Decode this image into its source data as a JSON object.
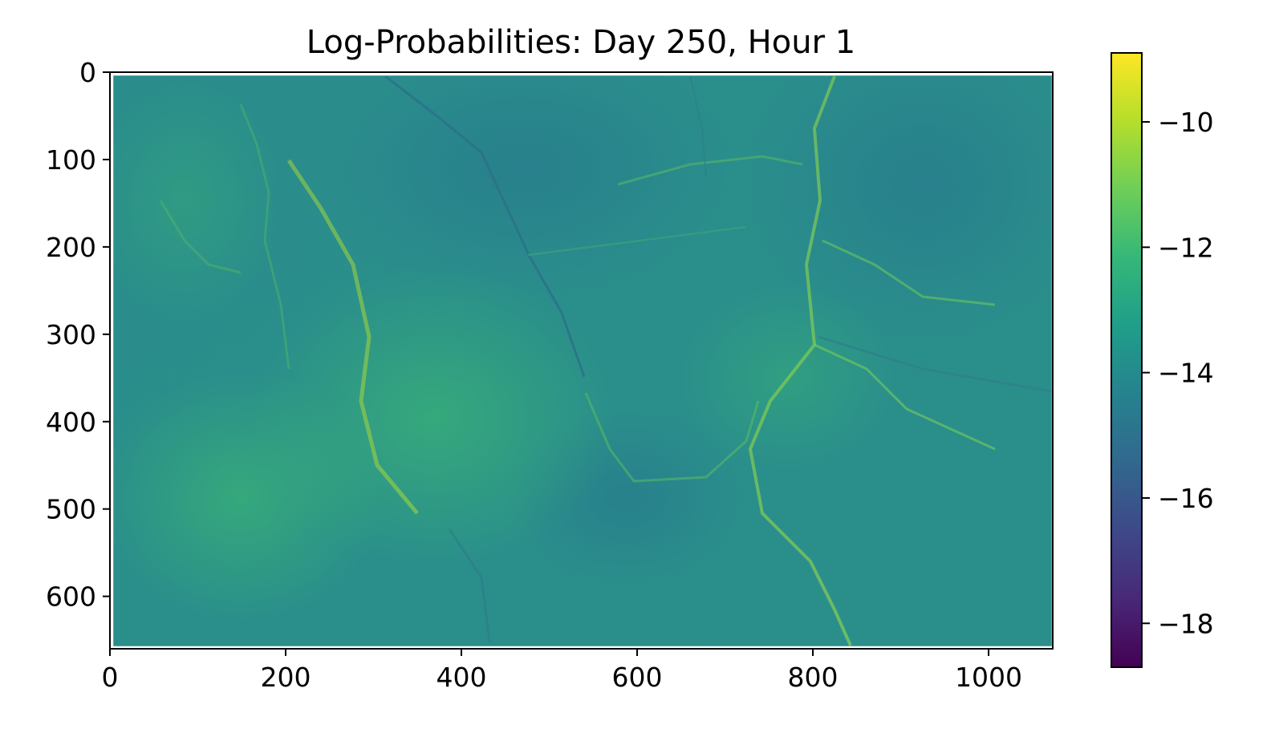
{
  "chart_data": {
    "type": "heatmap",
    "title": "Log-Probabilities: Day 250, Hour 1",
    "xlabel": "",
    "ylabel": "",
    "xlim": [
      0,
      1073
    ],
    "ylim": [
      660,
      0
    ],
    "x_ticks": [
      0,
      200,
      400,
      600,
      800,
      1000
    ],
    "y_ticks": [
      0,
      100,
      200,
      300,
      400,
      500,
      600
    ],
    "colormap": "viridis",
    "colorbar": {
      "range": [
        -18.7,
        -8.9
      ],
      "ticks": [
        -10,
        -12,
        -14,
        -16,
        -18
      ],
      "tick_labels": [
        "−10",
        "−12",
        "−14",
        "−16",
        "−18"
      ],
      "colors": [
        "#440154",
        "#482878",
        "#3e4989",
        "#31688e",
        "#26828e",
        "#1f9e89",
        "#35b779",
        "#6ece58",
        "#b5de2b",
        "#fde725"
      ]
    },
    "field_mean": -14.2,
    "grid": false,
    "legend": "none"
  }
}
